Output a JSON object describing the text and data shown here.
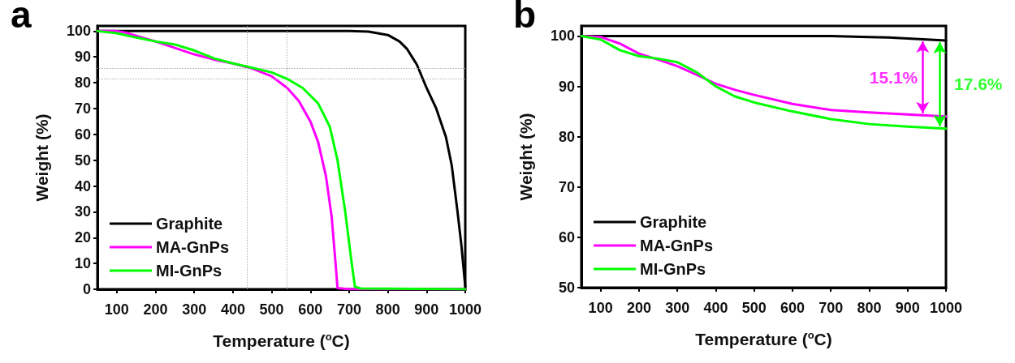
{
  "chart_data": [
    {
      "type": "line",
      "title": "a",
      "xlabel": "Temperature ($^{o}$C)",
      "ylabel": "Weight (%)",
      "xlim": [
        50,
        1000
      ],
      "xticks": [
        100,
        200,
        300,
        400,
        500,
        600,
        700,
        800,
        900,
        1000
      ],
      "ylim": [
        0,
        102
      ],
      "yticks": [
        0,
        10,
        20,
        30,
        40,
        50,
        60,
        70,
        80,
        90,
        100
      ],
      "legend": "bottom left",
      "grid": false,
      "marker": "none",
      "line_style": "solid",
      "ref_lines": [
        {
          "axis": "y",
          "value": 85.5,
          "color": "#b0b0b0",
          "line_style": "dotted"
        },
        {
          "axis": "y",
          "value": 81.5,
          "color": "#b0b0b0",
          "line_style": "dotted"
        },
        {
          "axis": "x",
          "value": 437,
          "color": "#b0b0b0",
          "line_style": "dotted"
        },
        {
          "axis": "x",
          "value": 540,
          "color": "#b0b0b0",
          "line_style": "dotted"
        }
      ],
      "series": [
        {
          "name": "Graphite",
          "color": "#000000",
          "x": [
            50,
            200,
            400,
            600,
            700,
            750,
            800,
            830,
            850,
            875,
            900,
            925,
            950,
            965,
            980,
            990,
            1000
          ],
          "values": [
            100,
            100,
            100,
            100,
            100,
            99.8,
            98.5,
            96,
            93,
            87,
            78,
            70,
            59,
            48,
            30,
            17,
            1
          ]
        },
        {
          "name": "MA-GnPs",
          "color": "#ff00ff",
          "x": [
            50,
            100,
            120,
            200,
            300,
            350,
            400,
            450,
            500,
            540,
            570,
            600,
            620,
            640,
            655,
            665,
            670,
            700,
            1000
          ],
          "values": [
            100,
            100,
            99.5,
            96,
            91,
            89,
            87.5,
            85.5,
            82.5,
            78,
            73,
            65,
            57,
            44,
            28,
            10,
            0.5,
            0,
            0
          ]
        },
        {
          "name": "MI-GnPs",
          "color": "#00ff00",
          "x": [
            50,
            100,
            150,
            200,
            250,
            300,
            350,
            400,
            450,
            500,
            540,
            580,
            620,
            650,
            670,
            690,
            705,
            715,
            730,
            1000
          ],
          "values": [
            100,
            99.2,
            97.5,
            96,
            94.8,
            92.5,
            89.5,
            87.5,
            85.8,
            84,
            81.5,
            78,
            72,
            63,
            50,
            30,
            12,
            1,
            0.3,
            0
          ]
        }
      ]
    },
    {
      "type": "line",
      "title": "b",
      "xlabel": "Temperature ($^{o}$C)",
      "ylabel": "Weight (%)",
      "xlim": [
        50,
        1000
      ],
      "xticks": [
        100,
        200,
        300,
        400,
        500,
        600,
        700,
        800,
        900,
        1000
      ],
      "ylim": [
        50,
        102
      ],
      "yticks": [
        50,
        60,
        70,
        80,
        90,
        100
      ],
      "legend": "bottom left",
      "grid": false,
      "marker": "none",
      "line_style": "solid",
      "annotations": [
        "15.1%",
        "17.6%"
      ],
      "series": [
        {
          "name": "Graphite",
          "color": "#000000",
          "x": [
            50,
            200,
            400,
            600,
            700,
            800,
            850,
            900,
            950,
            1000
          ],
          "values": [
            100,
            100,
            100,
            100,
            100,
            99.8,
            99.7,
            99.5,
            99.3,
            99.1
          ]
        },
        {
          "name": "MA-GnPs",
          "color": "#ff00ff",
          "x": [
            50,
            100,
            150,
            200,
            250,
            300,
            350,
            400,
            450,
            500,
            600,
            700,
            800,
            900,
            1000
          ],
          "values": [
            100,
            99.8,
            98.5,
            96.5,
            95.3,
            94,
            92.3,
            90.5,
            89.3,
            88.3,
            86.5,
            85.3,
            84.8,
            84.4,
            84
          ]
        },
        {
          "name": "MI-GnPs",
          "color": "#00ff00",
          "x": [
            50,
            100,
            150,
            200,
            250,
            300,
            350,
            400,
            450,
            500,
            600,
            700,
            800,
            900,
            1000
          ],
          "values": [
            100,
            99.3,
            97.2,
            96,
            95.5,
            94.8,
            92.8,
            90,
            88,
            86.8,
            85,
            83.5,
            82.5,
            82,
            81.6
          ]
        }
      ]
    }
  ]
}
